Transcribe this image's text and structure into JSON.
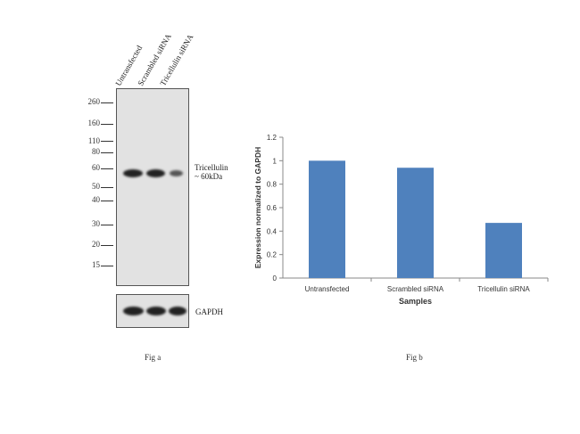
{
  "fig_a": {
    "lane_labels": [
      "Untransfected",
      "Scrambled siRNA",
      "Tricellulin siRNA"
    ],
    "mw_markers": [
      "260",
      "160",
      "110",
      "80",
      "60",
      "50",
      "40",
      "30",
      "20",
      "15"
    ],
    "band_label_line1": "Tricellulin",
    "band_label_line2": "~ 60kDa",
    "loading_control_label": "GAPDH",
    "caption": "Fig a"
  },
  "fig_b": {
    "caption": "Fig b"
  },
  "chart_data": {
    "type": "bar",
    "categories": [
      "Untransfected",
      "Scrambled siRNA",
      "Tricellulin siRNA"
    ],
    "values": [
      1.0,
      0.94,
      0.47
    ],
    "title": "",
    "xlabel": "Samples",
    "ylabel": "Expression normalized to GAPDH",
    "ylim": [
      0,
      1.2
    ],
    "yticks": [
      "0",
      "0.2",
      "0.4",
      "0.6",
      "0.8",
      "1",
      "1.2"
    ],
    "bar_color": "#4f81bd",
    "grid": false,
    "legend": "none"
  }
}
